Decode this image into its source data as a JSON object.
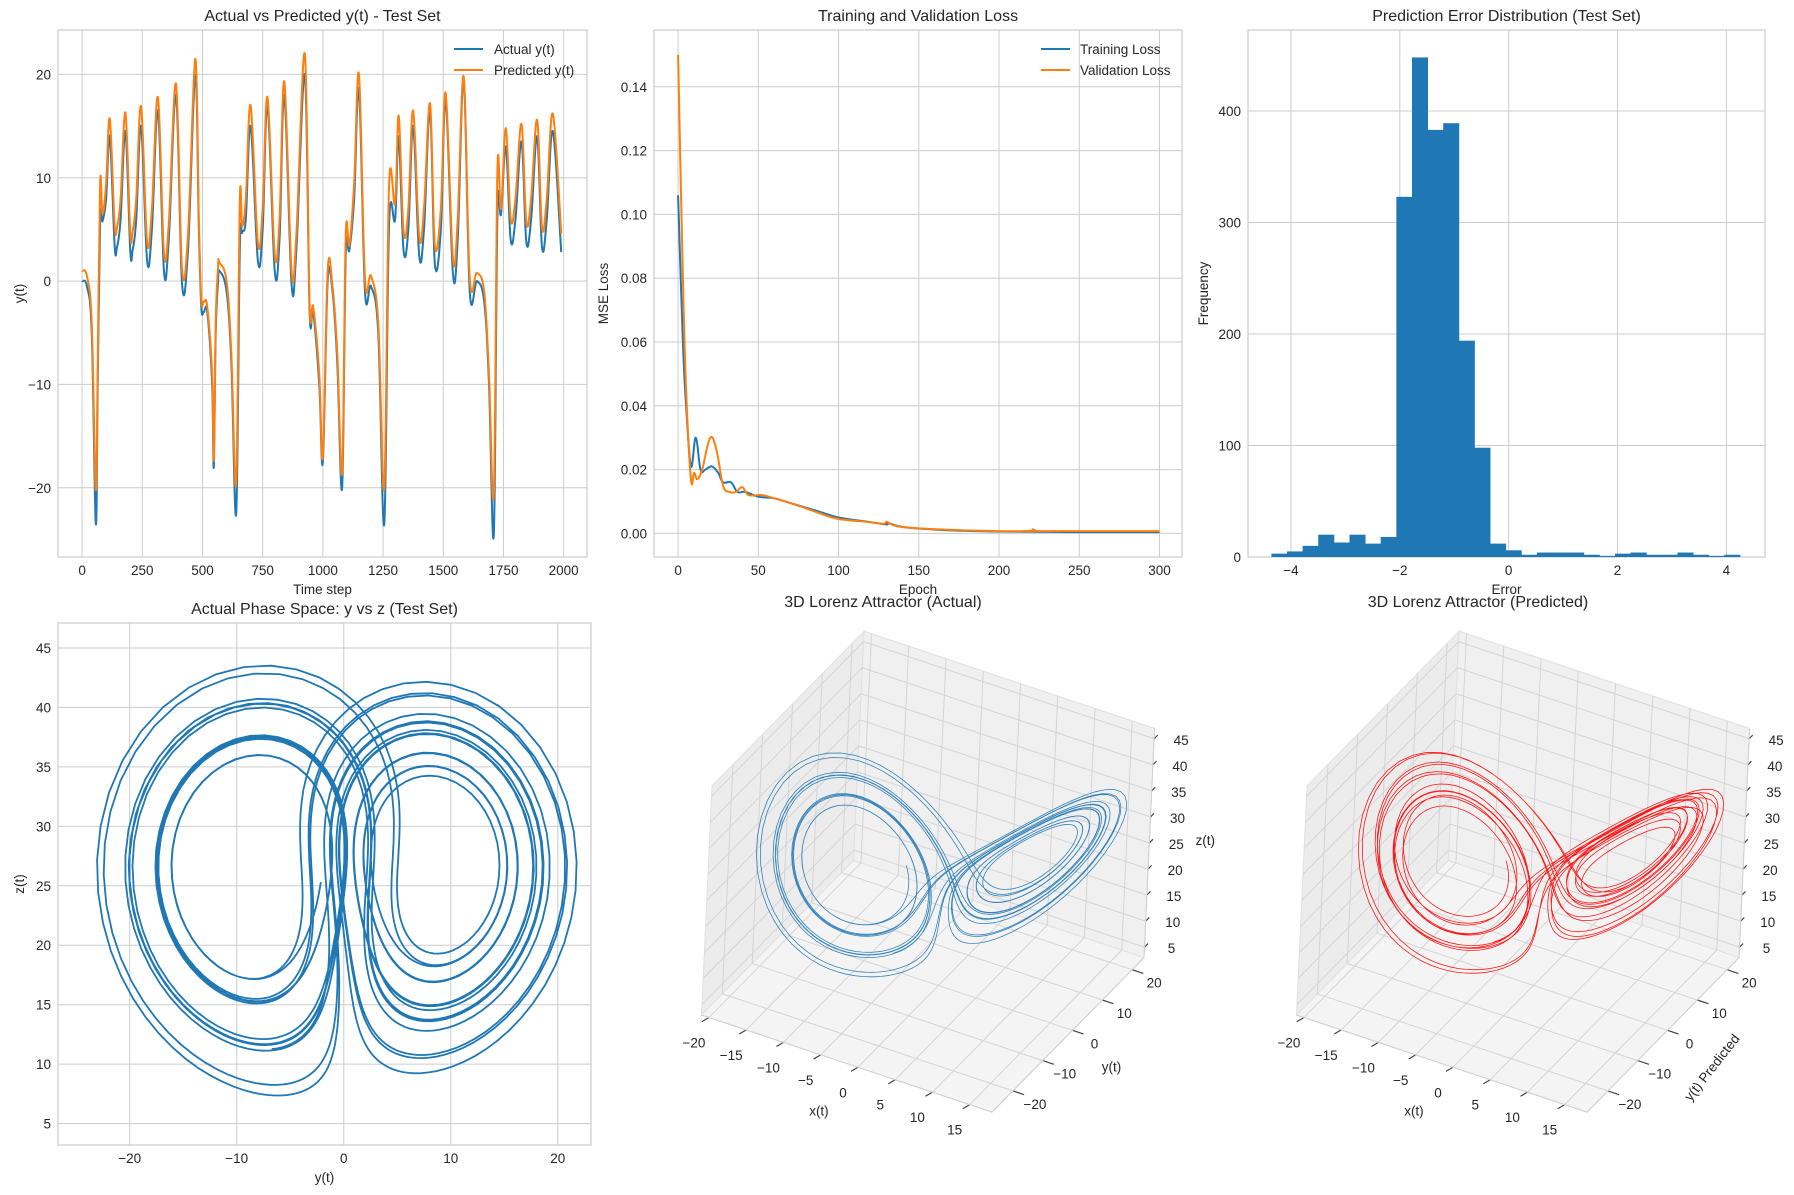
{
  "colors": {
    "actual": "#1f77b4",
    "predicted": "#ff7f0e",
    "predicted_3d": "#ff0000",
    "grid": "#cccccc"
  },
  "chart_data": [
    {
      "type": "line",
      "title": "Actual vs Predicted y(t) - Test Set",
      "xlabel": "Time step",
      "ylabel": "y(t)",
      "xlim": [
        -100,
        2097
      ],
      "ylim": [
        -26.7,
        24.3
      ],
      "grid": true,
      "legend": "top-right",
      "xticks": [
        {
          "v": 0,
          "t": "0"
        },
        {
          "v": 250,
          "t": "250"
        },
        {
          "v": 500,
          "t": "500"
        },
        {
          "v": 750,
          "t": "750"
        },
        {
          "v": 1000,
          "t": "1000"
        },
        {
          "v": 1250,
          "t": "1250"
        },
        {
          "v": 1500,
          "t": "1500"
        },
        {
          "v": 1750,
          "t": "1750"
        },
        {
          "v": 2000,
          "t": "2000"
        }
      ],
      "yticks": [
        {
          "v": -20,
          "t": "−20"
        },
        {
          "v": -10,
          "t": "−10"
        },
        {
          "v": 0,
          "t": "0"
        },
        {
          "v": 10,
          "t": "10"
        },
        {
          "v": 20,
          "t": "20"
        }
      ],
      "x": [
        0,
        20,
        40,
        57,
        65,
        75,
        85,
        100,
        115,
        135,
        145,
        160,
        180,
        200,
        210,
        225,
        245,
        270,
        290,
        315,
        340,
        360,
        390,
        415,
        440,
        470,
        485,
        495,
        505,
        520,
        540,
        547,
        555,
        565,
        570,
        600,
        620,
        640,
        655,
        665,
        680,
        700,
        730,
        750,
        770,
        800,
        820,
        840,
        870,
        890,
        925,
        945,
        960,
        985,
        1000,
        1020,
        1040,
        1060,
        1080,
        1095,
        1110,
        1130,
        1150,
        1175,
        1200,
        1230,
        1255,
        1275,
        1300,
        1315,
        1335,
        1355,
        1375,
        1400,
        1420,
        1445,
        1465,
        1490,
        1510,
        1540,
        1560,
        1585,
        1610,
        1640,
        1670,
        1690,
        1710,
        1725,
        1740,
        1760,
        1780,
        1800,
        1825,
        1845,
        1865,
        1890,
        1910,
        1930,
        1955,
        1990
      ],
      "series": [
        {
          "name": "Actual y(t)",
          "values": [
            0,
            -0.5,
            -5,
            -23.5,
            -10,
            5.8,
            5.8,
            8,
            14,
            3.5,
            3.3,
            6,
            14.5,
            3,
            3,
            6,
            15,
            2,
            5,
            16.5,
            1,
            4,
            18,
            -0.2,
            3,
            20,
            5,
            -2.5,
            -3,
            -3,
            -10,
            -18,
            -5,
            0,
            1,
            -1,
            -8,
            -22.5,
            3,
            4.7,
            6,
            15,
            2,
            5,
            17,
            1,
            4,
            18,
            -0.3,
            3,
            20,
            -3,
            -3,
            -10,
            -17.5,
            0,
            -1,
            -8,
            -20,
            2.5,
            3,
            8,
            18.5,
            -1,
            -0.5,
            -5,
            -23.5,
            5.5,
            6,
            14,
            3,
            5,
            15,
            2.5,
            5,
            16.5,
            1.7,
            5,
            17.5,
            0.8,
            4,
            19.5,
            -1,
            0,
            -2,
            -10,
            -24.5,
            6.5,
            6.5,
            13,
            4,
            6,
            13.5,
            3.8,
            6,
            14,
            3.3,
            6,
            14.5,
            2.8
          ]
        },
        {
          "name": "Predicted y(t)",
          "values": [
            1,
            0.5,
            -4,
            -20.2,
            -8,
            9.5,
            6.5,
            9.5,
            15.7,
            5.5,
            5.2,
            8,
            16.3,
            4.7,
            4.8,
            8,
            16.9,
            3.8,
            7,
            17.8,
            2.8,
            5.5,
            19.1,
            1.2,
            4.5,
            21.5,
            6,
            -1.8,
            -2,
            -2.5,
            -9,
            -17.3,
            -4,
            1.5,
            1.8,
            0,
            -7,
            -19.5,
            7.7,
            5.3,
            8,
            17,
            3.7,
            7,
            17.8,
            2.6,
            6,
            19.3,
            1,
            4.5,
            22,
            -2.3,
            -2.5,
            -9,
            -17,
            1,
            -0.5,
            -7,
            -18.5,
            4.4,
            3.5,
            9.5,
            20,
            0.2,
            0.5,
            -4,
            -20,
            9.3,
            7.5,
            16,
            4.8,
            7,
            16.5,
            4.3,
            7,
            17.2,
            3.5,
            7,
            18.2,
            2.2,
            6,
            19.8,
            0.3,
            0.8,
            -1,
            -9,
            -20.5,
            10.8,
            7,
            14.8,
            6,
            8,
            15.2,
            5.7,
            8,
            15.6,
            5.2,
            8,
            16.2,
            4.6
          ]
        }
      ]
    },
    {
      "type": "line",
      "title": "Training and Validation Loss",
      "xlabel": "Epoch",
      "ylabel": "MSE Loss",
      "xlim": [
        -15,
        314
      ],
      "ylim": [
        -0.0074,
        0.1578
      ],
      "grid": true,
      "legend": "top-right",
      "xticks": [
        {
          "v": 0,
          "t": "0"
        },
        {
          "v": 50,
          "t": "50"
        },
        {
          "v": 100,
          "t": "100"
        },
        {
          "v": 150,
          "t": "150"
        },
        {
          "v": 200,
          "t": "200"
        },
        {
          "v": 250,
          "t": "250"
        },
        {
          "v": 300,
          "t": "300"
        }
      ],
      "yticks": [
        {
          "v": 0,
          "t": "0.00"
        },
        {
          "v": 0.02,
          "t": "0.02"
        },
        {
          "v": 0.04,
          "t": "0.04"
        },
        {
          "v": 0.06,
          "t": "0.06"
        },
        {
          "v": 0.08,
          "t": "0.08"
        },
        {
          "v": 0.1,
          "t": "0.10"
        },
        {
          "v": 0.12,
          "t": "0.12"
        },
        {
          "v": 0.14,
          "t": "0.14"
        }
      ],
      "series": [
        {
          "name": "Training Loss",
          "x": [
            0,
            3,
            5,
            8,
            11,
            14,
            17,
            21,
            25,
            28,
            33,
            37,
            42,
            50,
            60,
            70,
            80,
            90,
            100,
            120,
            130,
            131,
            140,
            160,
            180,
            200,
            250,
            300
          ],
          "values": [
            0.106,
            0.06,
            0.04,
            0.021,
            0.03,
            0.02,
            0.02,
            0.021,
            0.019,
            0.016,
            0.016,
            0.013,
            0.013,
            0.0115,
            0.011,
            0.0095,
            0.008,
            0.0065,
            0.005,
            0.0035,
            0.0028,
            0.0032,
            0.002,
            0.0012,
            0.0008,
            0.0006,
            0.0004,
            0.0004
          ]
        },
        {
          "name": "Validation Loss",
          "x": [
            0,
            3,
            5,
            8,
            10,
            12,
            15,
            20,
            24,
            28,
            32,
            36,
            40,
            44,
            52,
            60,
            70,
            80,
            90,
            100,
            120,
            128,
            130,
            133,
            140,
            160,
            200,
            220,
            221,
            223,
            225,
            300
          ],
          "values": [
            0.15,
            0.08,
            0.045,
            0.017,
            0.019,
            0.017,
            0.02,
            0.03,
            0.026,
            0.015,
            0.013,
            0.013,
            0.0145,
            0.012,
            0.012,
            0.011,
            0.0095,
            0.0078,
            0.006,
            0.0045,
            0.0035,
            0.003,
            0.0037,
            0.0028,
            0.002,
            0.0013,
            0.0007,
            0.0008,
            0.0013,
            0.0008,
            0.0007,
            0.0007
          ]
        }
      ]
    },
    {
      "type": "bar",
      "subtype": "histogram",
      "title": "Prediction Error Distribution (Test Set)",
      "xlabel": "Error",
      "ylabel": "Frequency",
      "xlim": [
        -4.79,
        4.71
      ],
      "ylim": [
        0,
        472.6
      ],
      "grid": true,
      "bin_range": [
        -4.36,
        4.25
      ],
      "counts": [
        3,
        5,
        10,
        20,
        13,
        20,
        12,
        18,
        323,
        448,
        383,
        389,
        194,
        98,
        12,
        6,
        2,
        4,
        4,
        4,
        2,
        1,
        3,
        4,
        2,
        2,
        4,
        2,
        1,
        2
      ],
      "xticks": [
        {
          "v": -4,
          "t": "−4"
        },
        {
          "v": -2,
          "t": "−2"
        },
        {
          "v": 0,
          "t": "0"
        },
        {
          "v": 2,
          "t": "2"
        },
        {
          "v": 4,
          "t": "4"
        }
      ],
      "yticks": [
        {
          "v": 0,
          "t": "0"
        },
        {
          "v": 100,
          "t": "100"
        },
        {
          "v": 200,
          "t": "200"
        },
        {
          "v": 300,
          "t": "300"
        },
        {
          "v": 400,
          "t": "400"
        }
      ]
    },
    {
      "type": "line",
      "title": "Actual Phase Space: y vs z (Test Set)",
      "xlabel": "y(t)",
      "ylabel": "z(t)",
      "xlim": [
        -26.7,
        23.1
      ],
      "ylim": [
        3.2,
        47.1
      ],
      "grid": true,
      "xticks": [
        {
          "v": -20,
          "t": "−20"
        },
        {
          "v": -10,
          "t": "−10"
        },
        {
          "v": 0,
          "t": "0"
        },
        {
          "v": 10,
          "t": "10"
        },
        {
          "v": 20,
          "t": "20"
        }
      ],
      "yticks": [
        {
          "v": 5,
          "t": "5"
        },
        {
          "v": 10,
          "t": "10"
        },
        {
          "v": 15,
          "t": "15"
        },
        {
          "v": 20,
          "t": "20"
        },
        {
          "v": 25,
          "t": "25"
        },
        {
          "v": 30,
          "t": "30"
        },
        {
          "v": 35,
          "t": "35"
        },
        {
          "v": 40,
          "t": "40"
        },
        {
          "v": 45,
          "t": "45"
        }
      ]
    },
    {
      "type": "line3d",
      "title": "3D Lorenz Attractor (Actual)",
      "xlabel": "x(t)",
      "ylabel": "y(t)",
      "zlabel": "z(t)",
      "xticks": [
        {
          "v": -20,
          "t": "−20"
        },
        {
          "v": -15,
          "t": "−15"
        },
        {
          "v": -10,
          "t": "−10"
        },
        {
          "v": -5,
          "t": "−5"
        },
        {
          "v": 0,
          "t": "0"
        },
        {
          "v": 5,
          "t": "5"
        },
        {
          "v": 10,
          "t": "10"
        },
        {
          "v": 15,
          "t": "15"
        }
      ],
      "yticks": [
        {
          "v": -20,
          "t": "−20"
        },
        {
          "v": -10,
          "t": "−10"
        },
        {
          "v": 0,
          "t": "0"
        },
        {
          "v": 10,
          "t": "10"
        },
        {
          "v": 20,
          "t": "20"
        }
      ],
      "zticks": [
        {
          "v": 5,
          "t": "5"
        },
        {
          "v": 10,
          "t": "10"
        },
        {
          "v": 15,
          "t": "15"
        },
        {
          "v": 20,
          "t": "20"
        },
        {
          "v": 25,
          "t": "25"
        },
        {
          "v": 30,
          "t": "30"
        },
        {
          "v": 35,
          "t": "35"
        },
        {
          "v": 40,
          "t": "40"
        },
        {
          "v": 45,
          "t": "45"
        }
      ]
    },
    {
      "type": "line3d",
      "title": "3D Lorenz Attractor (Predicted)",
      "xlabel": "x(t)",
      "ylabel": "y(t) Predicted",
      "xticks": [
        {
          "v": -20,
          "t": "−20"
        },
        {
          "v": -15,
          "t": "−15"
        },
        {
          "v": -10,
          "t": "−10"
        },
        {
          "v": -5,
          "t": "−5"
        },
        {
          "v": 0,
          "t": "0"
        },
        {
          "v": 5,
          "t": "5"
        },
        {
          "v": 10,
          "t": "10"
        },
        {
          "v": 15,
          "t": "15"
        }
      ],
      "yticks": [
        {
          "v": -20,
          "t": "−20"
        },
        {
          "v": -10,
          "t": "−10"
        },
        {
          "v": 0,
          "t": "0"
        },
        {
          "v": 10,
          "t": "10"
        },
        {
          "v": 20,
          "t": "20"
        }
      ],
      "zticks": [
        {
          "v": 5,
          "t": "5"
        },
        {
          "v": 10,
          "t": "10"
        },
        {
          "v": 15,
          "t": "15"
        },
        {
          "v": 20,
          "t": "20"
        },
        {
          "v": 25,
          "t": "25"
        },
        {
          "v": 30,
          "t": "30"
        },
        {
          "v": 35,
          "t": "35"
        },
        {
          "v": 40,
          "t": "40"
        },
        {
          "v": 45,
          "t": "45"
        }
      ]
    }
  ]
}
